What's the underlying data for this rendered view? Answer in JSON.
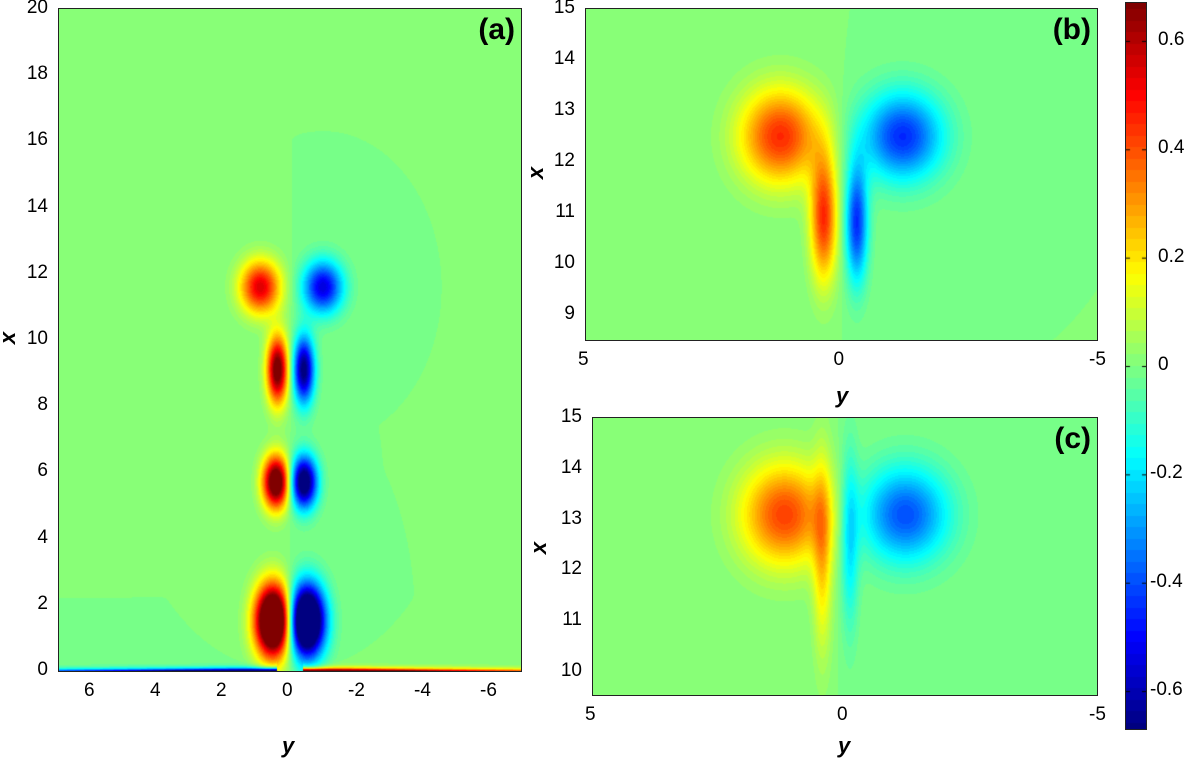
{
  "chart_data": [
    {
      "type": "heatmap",
      "panel_label": "(a)",
      "xlabel": "y",
      "ylabel": "x",
      "xlim": [
        7,
        -7
      ],
      "ylim": [
        0,
        20
      ],
      "xticks": [
        6,
        4,
        2,
        0,
        -2,
        -4,
        -6
      ],
      "yticks": [
        0,
        2,
        4,
        6,
        8,
        10,
        12,
        14,
        16,
        18,
        20
      ],
      "colormap": "jet",
      "features": [
        {
          "y": 0.9,
          "x": 11.6,
          "value": 0.55,
          "sy": 0.42,
          "sx": 0.55
        },
        {
          "y": -1.0,
          "x": 11.6,
          "value": -0.55,
          "sy": 0.42,
          "sx": 0.55
        },
        {
          "y": 0.38,
          "x": 9.1,
          "value": 0.75,
          "sy": 0.22,
          "sx": 0.7
        },
        {
          "y": -0.42,
          "x": 9.1,
          "value": -0.7,
          "sy": 0.22,
          "sx": 0.7
        },
        {
          "y": 0.42,
          "x": 5.7,
          "value": 0.85,
          "sy": 0.28,
          "sx": 0.55
        },
        {
          "y": -0.42,
          "x": 5.7,
          "value": -0.8,
          "sy": 0.28,
          "sx": 0.55
        },
        {
          "y": 0.5,
          "x": 1.5,
          "value": 1.2,
          "sy": 0.38,
          "sx": 0.75
        },
        {
          "y": -0.5,
          "x": 1.5,
          "value": -1.2,
          "sy": 0.38,
          "sx": 0.75
        }
      ],
      "wall_layer": true
    },
    {
      "type": "heatmap",
      "panel_label": "(b)",
      "xlabel": "y",
      "ylabel": "x",
      "xlim": [
        5,
        -5
      ],
      "ylim": [
        8.5,
        15
      ],
      "xticks": [
        5,
        0,
        -5
      ],
      "yticks": [
        9,
        10,
        11,
        12,
        13,
        14,
        15
      ],
      "colormap": "jet",
      "features": [
        {
          "y": 1.2,
          "x": 12.5,
          "value": 0.45,
          "sy": 0.55,
          "sx": 0.65
        },
        {
          "y": -1.2,
          "x": 12.5,
          "value": -0.45,
          "sy": 0.55,
          "sx": 0.6
        },
        {
          "y": 0.35,
          "x": 10.9,
          "value": 0.45,
          "sy": 0.18,
          "sx": 0.85
        },
        {
          "y": -0.3,
          "x": 10.8,
          "value": -0.45,
          "sy": 0.15,
          "sx": 0.8
        }
      ],
      "wall_layer": false
    },
    {
      "type": "heatmap",
      "panel_label": "(c)",
      "xlabel": "y",
      "ylabel": "x",
      "xlim": [
        5,
        -5
      ],
      "ylim": [
        9.55,
        15
      ],
      "xticks": [
        5,
        0,
        -5
      ],
      "yticks": [
        10,
        11,
        12,
        13,
        14,
        15
      ],
      "colormap": "jet",
      "features": [
        {
          "y": 1.2,
          "x": 13.1,
          "value": 0.42,
          "sy": 0.6,
          "sx": 0.7
        },
        {
          "y": -1.2,
          "x": 13.1,
          "value": -0.4,
          "sy": 0.6,
          "sx": 0.65
        },
        {
          "y": 0.45,
          "x": 12.3,
          "value": 0.22,
          "sy": 0.13,
          "sx": 1.3
        },
        {
          "y": -0.1,
          "x": 12.6,
          "value": -0.2,
          "sy": 0.12,
          "sx": 1.2
        }
      ],
      "wall_layer": false
    }
  ],
  "colorbar": {
    "range": [
      -0.67,
      0.67
    ],
    "ticks": [
      "0.6",
      "0.4",
      "0.2",
      "0",
      "-0.2",
      "-0.4",
      "-0.6"
    ],
    "tick_values": [
      0.6,
      0.4,
      0.2,
      0,
      -0.2,
      -0.4,
      -0.6
    ]
  }
}
